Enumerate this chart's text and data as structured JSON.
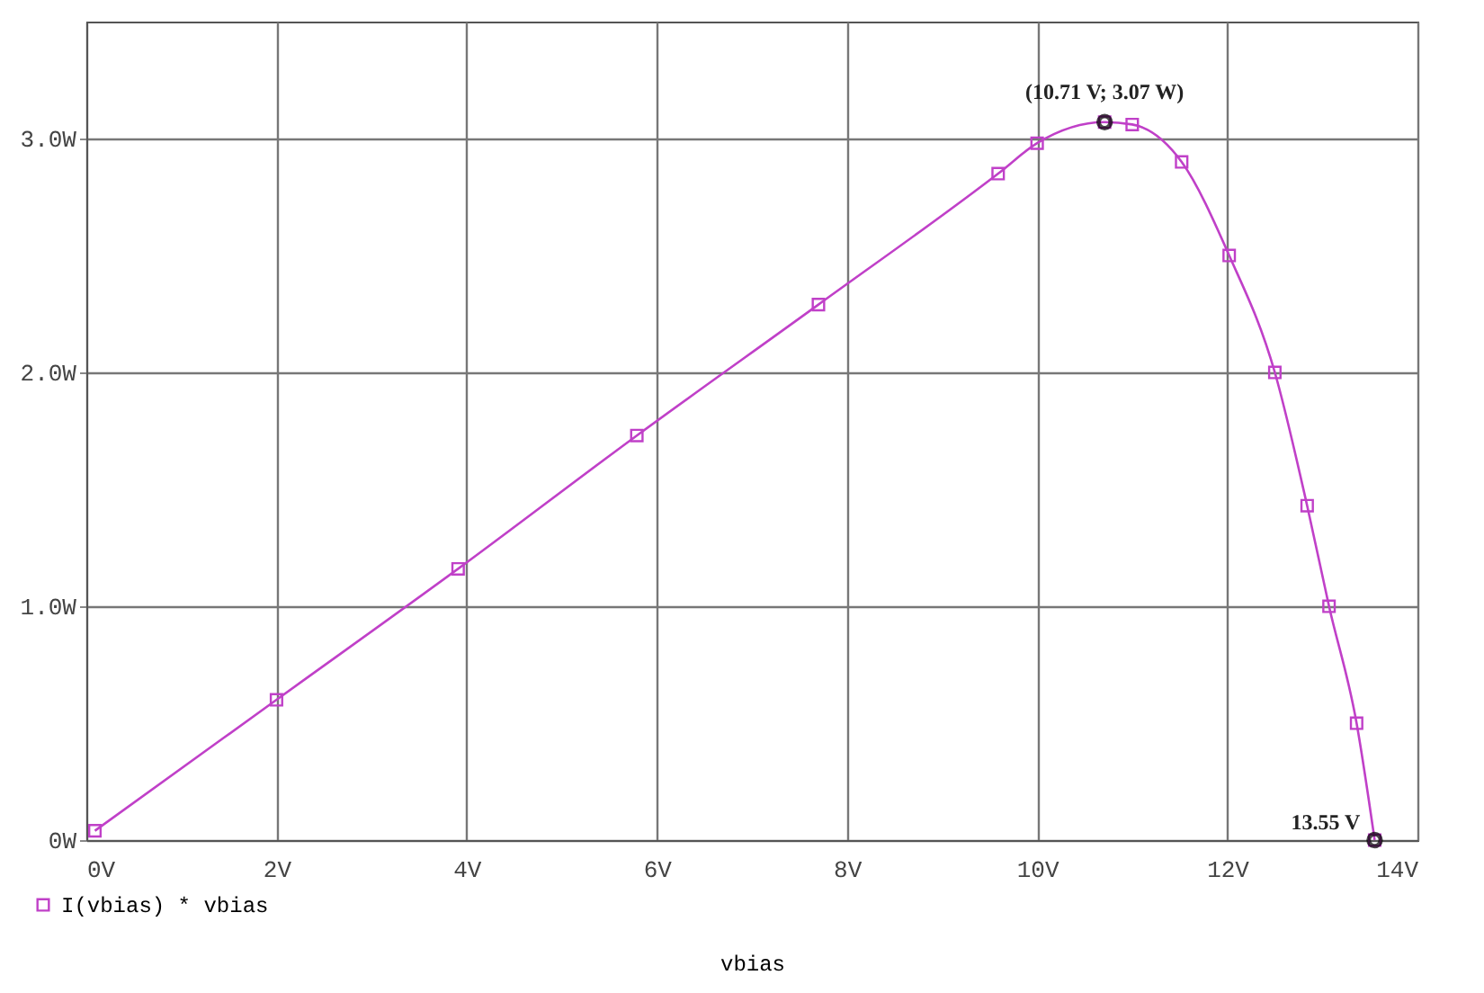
{
  "chart_data": {
    "type": "line",
    "xlabel": "vbias",
    "x": [
      0.09,
      2,
      3.91,
      5.79,
      7.7,
      9.59,
      10.0,
      10.71,
      11.0,
      11.52,
      12.02,
      12.5,
      12.84,
      13.07,
      13.36,
      13.55
    ],
    "series": [
      {
        "name": "I(vbias) * vbias",
        "color": "#c040c8",
        "values": [
          0.04,
          0.6,
          1.16,
          1.73,
          2.29,
          2.85,
          2.98,
          3.07,
          3.06,
          2.9,
          2.5,
          2.0,
          1.43,
          1.0,
          0.5,
          0
        ]
      }
    ],
    "xlim": [
      0,
      14
    ],
    "ylim": [
      0,
      3.5
    ],
    "xticks": [
      {
        "value": 0,
        "label": "0V"
      },
      {
        "value": 2,
        "label": "2V"
      },
      {
        "value": 4,
        "label": "4V"
      },
      {
        "value": 6,
        "label": "6V"
      },
      {
        "value": 8,
        "label": "8V"
      },
      {
        "value": 10,
        "label": "10V"
      },
      {
        "value": 12,
        "label": "12V"
      },
      {
        "value": 14,
        "label": "14V"
      }
    ],
    "yticks": [
      {
        "value": 0,
        "label": "0W"
      },
      {
        "value": 1,
        "label": "1.0W"
      },
      {
        "value": 2,
        "label": "2.0W"
      },
      {
        "value": 3,
        "label": "3.0W"
      }
    ],
    "annotations": [
      {
        "text": "(10.71 V; 3.07 W)",
        "x": 10.71,
        "y": 3.07
      },
      {
        "text": "13.55 V",
        "x": 13.55,
        "y": 0
      }
    ],
    "grid": true,
    "legend": "bottom left",
    "marker": "square",
    "line_style": "solid"
  }
}
